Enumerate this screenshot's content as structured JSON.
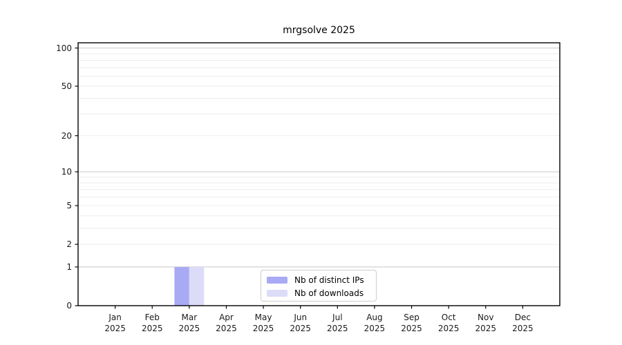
{
  "chart_data": {
    "type": "bar",
    "title": "mrgsolve 2025",
    "categories": [
      "Jan",
      "Feb",
      "Mar",
      "Apr",
      "May",
      "Jun",
      "Jul",
      "Aug",
      "Sep",
      "Oct",
      "Nov",
      "Dec"
    ],
    "year": "2025",
    "series": [
      {
        "name": "Nb of distinct IPs",
        "color": "#a9aaf4",
        "values": [
          0,
          0,
          1,
          0,
          0,
          0,
          0,
          0,
          0,
          0,
          0,
          0
        ]
      },
      {
        "name": "Nb of downloads",
        "color": "#dcdcf8",
        "values": [
          0,
          0,
          1,
          0,
          0,
          0,
          0,
          0,
          0,
          0,
          0,
          0
        ]
      }
    ],
    "xlabel": "",
    "ylabel": "",
    "y_scale": "log10(value+1)",
    "y_ticks": [
      0,
      1,
      2,
      5,
      10,
      20,
      50,
      100
    ],
    "ylim": [
      0,
      110
    ],
    "grid": {
      "minor_values": [
        2,
        3,
        4,
        5,
        6,
        7,
        8,
        9,
        20,
        30,
        40,
        50,
        60,
        70,
        80,
        90
      ],
      "major_values": [
        1,
        10,
        100
      ],
      "minor_color": "#ededed",
      "major_color": "#c8c8c8"
    },
    "axis_color": "#000000",
    "legend_position": "inside-bottom-center"
  }
}
